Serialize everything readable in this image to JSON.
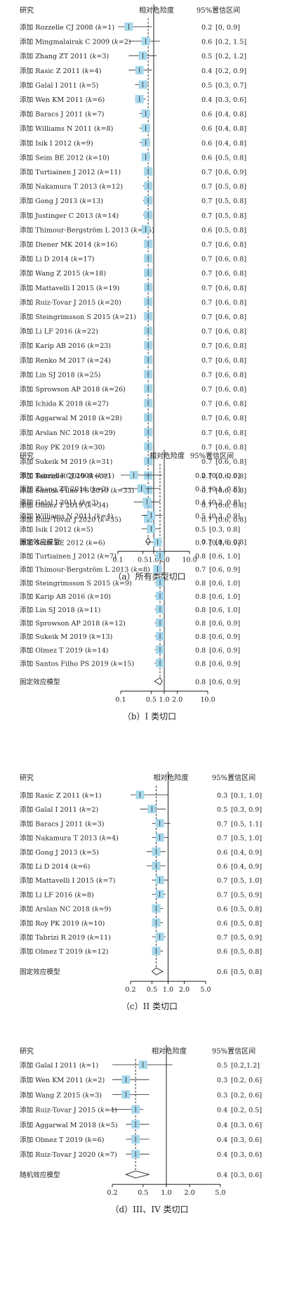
{
  "chart_data": [
    {
      "type": "forest",
      "caption": "（a）所有类型切口",
      "header_study": "研究",
      "header_effect": "相对危险度",
      "header_ci": "95%置信区间",
      "x_scale": "log",
      "xlim": [
        0.1,
        10
      ],
      "ticks": [
        "0.1",
        "0.5",
        "1.0",
        "2.0",
        "10.0"
      ],
      "reference_line": 1.0,
      "studies": [
        {
          "label": "添加 Rozzelle CJ 2008 (k=1)",
          "rr": 0.2,
          "ci": [
            0.0,
            0.9
          ],
          "rr_text": "0.2",
          "ci_text": "[0, 0.9]"
        },
        {
          "label": "添加 Mingmalairak C 2009 (k=2)",
          "rr": 0.6,
          "ci": [
            0.2,
            1.5
          ],
          "rr_text": "0.6",
          "ci_text": "[0.2, 1.5]"
        },
        {
          "label": "添加 Zhang ZT 2011 (k=3)",
          "rr": 0.5,
          "ci": [
            0.2,
            1.2
          ],
          "rr_text": "0.5",
          "ci_text": "[0.2, 1.2]"
        },
        {
          "label": "添加 Rasic Z 2011 (k=4)",
          "rr": 0.4,
          "ci": [
            0.2,
            0.9
          ],
          "rr_text": "0.4",
          "ci_text": "[0.2, 0.9]"
        },
        {
          "label": "添加 Galal I 2011 (k=5)",
          "rr": 0.5,
          "ci": [
            0.3,
            0.7
          ],
          "rr_text": "0.5",
          "ci_text": "[0.3, 0.7]"
        },
        {
          "label": "添加 Wen KM 2011 (k=6)",
          "rr": 0.4,
          "ci": [
            0.3,
            0.6
          ],
          "rr_text": "0.4",
          "ci_text": "[0.3, 0.6]"
        },
        {
          "label": "添加 Baracs J 2011 (k=7)",
          "rr": 0.6,
          "ci": [
            0.4,
            0.8
          ],
          "rr_text": "0.6",
          "ci_text": "[0.4, 0.8]"
        },
        {
          "label": "添加 Williams N 2011 (k=8)",
          "rr": 0.6,
          "ci": [
            0.4,
            0.8
          ],
          "rr_text": "0.6",
          "ci_text": "[0.4, 0.8]"
        },
        {
          "label": "添加 Isik I 2012 (k=9)",
          "rr": 0.6,
          "ci": [
            0.4,
            0.8
          ],
          "rr_text": "0.6",
          "ci_text": "[0.4, 0.8]"
        },
        {
          "label": "添加 Seim BE 2012 (k=10)",
          "rr": 0.6,
          "ci": [
            0.5,
            0.8
          ],
          "rr_text": "0.6",
          "ci_text": "[0.5, 0.8]"
        },
        {
          "label": "添加 Turtiainen J 2012 (k=11)",
          "rr": 0.7,
          "ci": [
            0.6,
            0.9
          ],
          "rr_text": "0.7",
          "ci_text": "[0.6, 0.9]"
        },
        {
          "label": "添加 Nakamura T 2013 (k=12)",
          "rr": 0.7,
          "ci": [
            0.5,
            0.8
          ],
          "rr_text": "0.7",
          "ci_text": "[0.5, 0.8]"
        },
        {
          "label": "添加 Gong J 2013 (k=13)",
          "rr": 0.7,
          "ci": [
            0.5,
            0.8
          ],
          "rr_text": "0.7",
          "ci_text": "[0.5, 0.8]"
        },
        {
          "label": "添加 Justinger C 2013 (k=14)",
          "rr": 0.7,
          "ci": [
            0.5,
            0.8
          ],
          "rr_text": "0.7",
          "ci_text": "[0.5, 0.8]"
        },
        {
          "label": "添加 Thimour-Bergström L 2013 (k=15)",
          "rr": 0.6,
          "ci": [
            0.5,
            0.8
          ],
          "rr_text": "0.6",
          "ci_text": "[0.5, 0.8]"
        },
        {
          "label": "添加 Diener MK 2014 (k=16)",
          "rr": 0.7,
          "ci": [
            0.6,
            0.8
          ],
          "rr_text": "0.7",
          "ci_text": "[0.6, 0.8]"
        },
        {
          "label": "添加 Li D 2014 (k=17)",
          "rr": 0.7,
          "ci": [
            0.6,
            0.8
          ],
          "rr_text": "0.7",
          "ci_text": "[0.6, 0.8]"
        },
        {
          "label": "添加 Wang Z 2015 (k=18)",
          "rr": 0.7,
          "ci": [
            0.6,
            0.8
          ],
          "rr_text": "0.7",
          "ci_text": "[0.6, 0.8]"
        },
        {
          "label": "添加 Mattavelli I 2015 (k=19)",
          "rr": 0.7,
          "ci": [
            0.6,
            0.8
          ],
          "rr_text": "0.7",
          "ci_text": "[0.6, 0.8]"
        },
        {
          "label": "添加 Ruiz-Tovar J 2015 (k=20)",
          "rr": 0.7,
          "ci": [
            0.6,
            0.8
          ],
          "rr_text": "0.7",
          "ci_text": "[0.6, 0.8]"
        },
        {
          "label": "添加 Steingrimsson S 2015 (k=21)",
          "rr": 0.7,
          "ci": [
            0.6,
            0.8
          ],
          "rr_text": "0.7",
          "ci_text": "[0.6, 0.8]"
        },
        {
          "label": "添加 Li LF 2016 (k=22)",
          "rr": 0.7,
          "ci": [
            0.6,
            0.8
          ],
          "rr_text": "0.7",
          "ci_text": "[0.6, 0.8]"
        },
        {
          "label": "添加 Karip AB 2016 (k=23)",
          "rr": 0.7,
          "ci": [
            0.6,
            0.8
          ],
          "rr_text": "0.7",
          "ci_text": "[0.6, 0.8]"
        },
        {
          "label": "添加 Renko M 2017 (k=24)",
          "rr": 0.7,
          "ci": [
            0.6,
            0.8
          ],
          "rr_text": "0.7",
          "ci_text": "[0.6, 0.8]"
        },
        {
          "label": "添加 Lin SJ 2018 (k=25)",
          "rr": 0.7,
          "ci": [
            0.6,
            0.8
          ],
          "rr_text": "0.7",
          "ci_text": "[0.6, 0.8]"
        },
        {
          "label": "添加 Sprowson AP 2018 (k=26)",
          "rr": 0.7,
          "ci": [
            0.6,
            0.8
          ],
          "rr_text": "0.7",
          "ci_text": "[0.6, 0.8]"
        },
        {
          "label": "添加 Ichida K 2018 (k=27)",
          "rr": 0.7,
          "ci": [
            0.6,
            0.8
          ],
          "rr_text": "0.7",
          "ci_text": "[0.6, 0.8]"
        },
        {
          "label": "添加 Aggarwal M 2018 (k=28)",
          "rr": 0.7,
          "ci": [
            0.6,
            0.8
          ],
          "rr_text": "0.7",
          "ci_text": "[0.6, 0.8]"
        },
        {
          "label": "添加 Arslan NC 2018 (k=29)",
          "rr": 0.7,
          "ci": [
            0.6,
            0.8
          ],
          "rr_text": "0.7",
          "ci_text": "[0.6, 0.8]"
        },
        {
          "label": "添加 Roy PK 2019 (k=30)",
          "rr": 0.7,
          "ci": [
            0.6,
            0.8
          ],
          "rr_text": "0.7",
          "ci_text": "[0.6, 0.8]"
        },
        {
          "label": "添加 Sukeik M 2019 (k=31)",
          "rr": 0.7,
          "ci": [
            0.6,
            0.8
          ],
          "rr_text": "0.7",
          "ci_text": "[0.6, 0.8]"
        },
        {
          "label": "添加 Tabrizi R 2019 (k=32)",
          "rr": 0.7,
          "ci": [
            0.6,
            0.8
          ],
          "rr_text": "0.7",
          "ci_text": "[0.6, 0.8]"
        },
        {
          "label": "添加 Santos Filho PS 2019 (k=33)",
          "rr": 0.7,
          "ci": [
            0.6,
            0.8
          ],
          "rr_text": "0.7",
          "ci_text": "[0.6, 0.8]"
        },
        {
          "label": "添加 Olmez T 2019 (k=34)",
          "rr": 0.7,
          "ci": [
            0.6,
            0.8
          ],
          "rr_text": "0.7",
          "ci_text": "[0.6, 0.8]"
        },
        {
          "label": "添加 Ruiz-Tovar J 2020 (k=35)",
          "rr": 0.7,
          "ci": [
            0.6,
            0.8
          ],
          "rr_text": "0.7",
          "ci_text": "[0.6, 0.8]"
        }
      ],
      "summary": {
        "label": "固定效应模型",
        "rr": 0.7,
        "ci": [
          0.6,
          0.8
        ],
        "rr_text": "0.7",
        "ci_text": "[0.6, 0.8]"
      }
    },
    {
      "type": "forest",
      "caption": "（b）I 类切口",
      "header_study": "研究",
      "header_effect": "相对危险度",
      "header_ci": "95%置信区间",
      "x_scale": "log",
      "xlim": [
        0.1,
        10
      ],
      "ticks": [
        "0.1",
        "0.5",
        "1.0",
        "2.0",
        "10.0"
      ],
      "reference_line": 1.0,
      "studies": [
        {
          "label": "添加 Rozzelle CJ 2008 (k=1)",
          "rr": 0.2,
          "ci": [
            0.0,
            0.9
          ],
          "rr_text": "0.2",
          "ci_text": "[0.0, 0.9]"
        },
        {
          "label": "添加 Zhang ZT 2011 (k=2)",
          "rr": 0.3,
          "ci": [
            0.1,
            0.8
          ],
          "rr_text": "0.3",
          "ci_text": "[0.1, 0.8]"
        },
        {
          "label": "添加 Galal I 2011 (k=3)",
          "rr": 0.4,
          "ci": [
            0.2,
            0.8
          ],
          "rr_text": "0.4",
          "ci_text": "[0.2, 0.8]"
        },
        {
          "label": "添加 Williams N 2011 (k=4)",
          "rr": 0.5,
          "ci": [
            0.3,
            0.9
          ],
          "rr_text": "0.5",
          "ci_text": "[0.3, 0.9]"
        },
        {
          "label": "添加 Isik I 2012 (k=5)",
          "rr": 0.5,
          "ci": [
            0.3,
            0.8
          ],
          "rr_text": "0.5",
          "ci_text": "[0.3, 0.8]"
        },
        {
          "label": "添加 Seim BE 2012 (k=6)",
          "rr": 0.7,
          "ci": [
            0.4,
            0.9
          ],
          "rr_text": "0.7",
          "ci_text": "[0.4, 0.9]"
        },
        {
          "label": "添加 Turtiainen J 2012 (k=7)",
          "rr": 0.8,
          "ci": [
            0.6,
            1.0
          ],
          "rr_text": "0.8",
          "ci_text": "[0.6, 1.0]"
        },
        {
          "label": "添加 Thimour-Bergström L 2013 (k=8)",
          "rr": 0.7,
          "ci": [
            0.6,
            0.9
          ],
          "rr_text": "0.7",
          "ci_text": "[0.6, 0.9]"
        },
        {
          "label": "添加 Steingrimsson S 2015 (k=9)",
          "rr": 0.8,
          "ci": [
            0.6,
            1.0
          ],
          "rr_text": "0.8",
          "ci_text": "[0.6, 1.0]"
        },
        {
          "label": "添加 Karip AB 2016 (k=10)",
          "rr": 0.8,
          "ci": [
            0.6,
            1.0
          ],
          "rr_text": "0.8",
          "ci_text": "[0.6, 1.0]"
        },
        {
          "label": "添加 Lin SJ 2018 (k=11)",
          "rr": 0.8,
          "ci": [
            0.6,
            1.0
          ],
          "rr_text": "0.8",
          "ci_text": "[0.6, 1.0]"
        },
        {
          "label": "添加 Sprowson AP 2018 (k=12)",
          "rr": 0.8,
          "ci": [
            0.6,
            0.9
          ],
          "rr_text": "0.8",
          "ci_text": "[0.6, 0.9]"
        },
        {
          "label": "添加 Sukeik M 2019 (k=13)",
          "rr": 0.8,
          "ci": [
            0.6,
            0.9
          ],
          "rr_text": "0.8",
          "ci_text": "[0.6, 0.9]"
        },
        {
          "label": "添加 Olmez T 2019 (k=14)",
          "rr": 0.8,
          "ci": [
            0.6,
            0.9
          ],
          "rr_text": "0.8",
          "ci_text": "[0.6, 0.9]"
        },
        {
          "label": "添加 Santos Filho PS 2019 (k=15)",
          "rr": 0.8,
          "ci": [
            0.6,
            0.9
          ],
          "rr_text": "0.8",
          "ci_text": "[0.6, 0.9]"
        }
      ],
      "summary": {
        "label": "固定效应模型",
        "rr": 0.8,
        "ci": [
          0.6,
          0.9
        ],
        "rr_text": "0.8",
        "ci_text": "[0.6, 0.9]"
      }
    },
    {
      "type": "forest",
      "caption": "（c）II 类切口",
      "header_study": "研究",
      "header_effect": "相对危险度",
      "header_ci": "95%置信区间",
      "x_scale": "log",
      "xlim": [
        0.2,
        5
      ],
      "ticks": [
        "0.2",
        "0.5",
        "1.0",
        "2.0",
        "5.0"
      ],
      "reference_line": 1.0,
      "studies": [
        {
          "label": "添加 Rasic Z 2011 (k=1)",
          "rr": 0.3,
          "ci": [
            0.1,
            1.0
          ],
          "rr_text": "0.3",
          "ci_text": "[0.1, 1.0]"
        },
        {
          "label": "添加 Galal I 2011 (k=2)",
          "rr": 0.5,
          "ci": [
            0.3,
            0.9
          ],
          "rr_text": "0.5",
          "ci_text": "[0.3, 0.9]"
        },
        {
          "label": "添加 Baracs J 2011 (k=3)",
          "rr": 0.7,
          "ci": [
            0.5,
            1.1
          ],
          "rr_text": "0.7",
          "ci_text": "[0.5, 1.1]"
        },
        {
          "label": "添加 Nakamura T 2013 (k=4)",
          "rr": 0.7,
          "ci": [
            0.5,
            1.0
          ],
          "rr_text": "0.7",
          "ci_text": "[0.5, 1.0]"
        },
        {
          "label": "添加 Gong J 2013 (k=5)",
          "rr": 0.6,
          "ci": [
            0.4,
            0.9
          ],
          "rr_text": "0.6",
          "ci_text": "[0.4, 0.9]"
        },
        {
          "label": "添加 Li D 2014 (k=6)",
          "rr": 0.6,
          "ci": [
            0.4,
            0.9
          ],
          "rr_text": "0.6",
          "ci_text": "[0.4, 0.9]"
        },
        {
          "label": "添加 Mattavelli I 2015 (k=7)",
          "rr": 0.7,
          "ci": [
            0.5,
            1.0
          ],
          "rr_text": "0.7",
          "ci_text": "[0.5, 1.0]"
        },
        {
          "label": "添加 Li LF 2016 (k=8)",
          "rr": 0.7,
          "ci": [
            0.5,
            0.9
          ],
          "rr_text": "0.7",
          "ci_text": "[0.5, 0.9]"
        },
        {
          "label": "添加 Arslan NC 2018 (k=9)",
          "rr": 0.6,
          "ci": [
            0.5,
            0.8
          ],
          "rr_text": "0.6",
          "ci_text": "[0.5, 0.8]"
        },
        {
          "label": "添加 Roy PK 2019 (k=10)",
          "rr": 0.6,
          "ci": [
            0.5,
            0.8
          ],
          "rr_text": "0.6",
          "ci_text": "[0.5, 0.8]"
        },
        {
          "label": "添加 Tabrizi R 2019 (k=11)",
          "rr": 0.7,
          "ci": [
            0.5,
            0.9
          ],
          "rr_text": "0.7",
          "ci_text": "[0.5, 0.9]"
        },
        {
          "label": "添加 Olmez T 2019 (k=12)",
          "rr": 0.6,
          "ci": [
            0.5,
            0.8
          ],
          "rr_text": "0.6",
          "ci_text": "[0.5, 0.8]"
        }
      ],
      "summary": {
        "label": "固定效应模型",
        "rr": 0.6,
        "ci": [
          0.5,
          0.8
        ],
        "rr_text": "0.6",
        "ci_text": "[0.5, 0.8]"
      }
    },
    {
      "type": "forest",
      "caption": "（d）III、IV 类切口",
      "header_study": "研究",
      "header_effect": "相对危险度",
      "header_ci": "95%置信区间",
      "x_scale": "log",
      "xlim": [
        0.2,
        5
      ],
      "ticks": [
        "0.2",
        "0.5",
        "1.0",
        "2.0",
        "5.0"
      ],
      "reference_line": 1.0,
      "studies": [
        {
          "label": "添加 Galal I 2011 (k=1)",
          "rr": 0.5,
          "ci": [
            0.2,
            1.2
          ],
          "rr_text": "0.5",
          "ci_text": "[0.2,1.2]"
        },
        {
          "label": "添加 Wen KM 2011 (k=2)",
          "rr": 0.3,
          "ci": [
            0.2,
            0.6
          ],
          "rr_text": "0.3",
          "ci_text": "[0.2, 0.6]"
        },
        {
          "label": "添加 Wang Z 2015 (k=3)",
          "rr": 0.3,
          "ci": [
            0.2,
            0.6
          ],
          "rr_text": "0.3",
          "ci_text": "[0.2, 0.6]"
        },
        {
          "label": "添加 Ruiz-Tovar J 2015 (k=4)",
          "rr": 0.4,
          "ci": [
            0.2,
            0.5
          ],
          "rr_text": "0.4",
          "ci_text": "[0.2, 0.5]"
        },
        {
          "label": "添加 Aggarwal M 2018 (k=5)",
          "rr": 0.4,
          "ci": [
            0.3,
            0.6
          ],
          "rr_text": "0.4",
          "ci_text": "[0.3, 0.6]"
        },
        {
          "label": "添加 Olmez T 2019 (k=6)",
          "rr": 0.4,
          "ci": [
            0.3,
            0.6
          ],
          "rr_text": "0.4",
          "ci_text": "[0.3, 0.6]"
        },
        {
          "label": "添加 Ruiz-Tovar J 2020 (k=7)",
          "rr": 0.4,
          "ci": [
            0.3,
            0.6
          ],
          "rr_text": "0.4",
          "ci_text": "[0.3, 0.6]"
        }
      ],
      "summary": {
        "label": "随机效应模型",
        "rr": 0.4,
        "ci": [
          0.3,
          0.6
        ],
        "rr_text": "0.4",
        "ci_text": "[0.3, 0.6]"
      }
    }
  ],
  "colors": {
    "marker": "#a8d8ec",
    "line": "#222222"
  }
}
